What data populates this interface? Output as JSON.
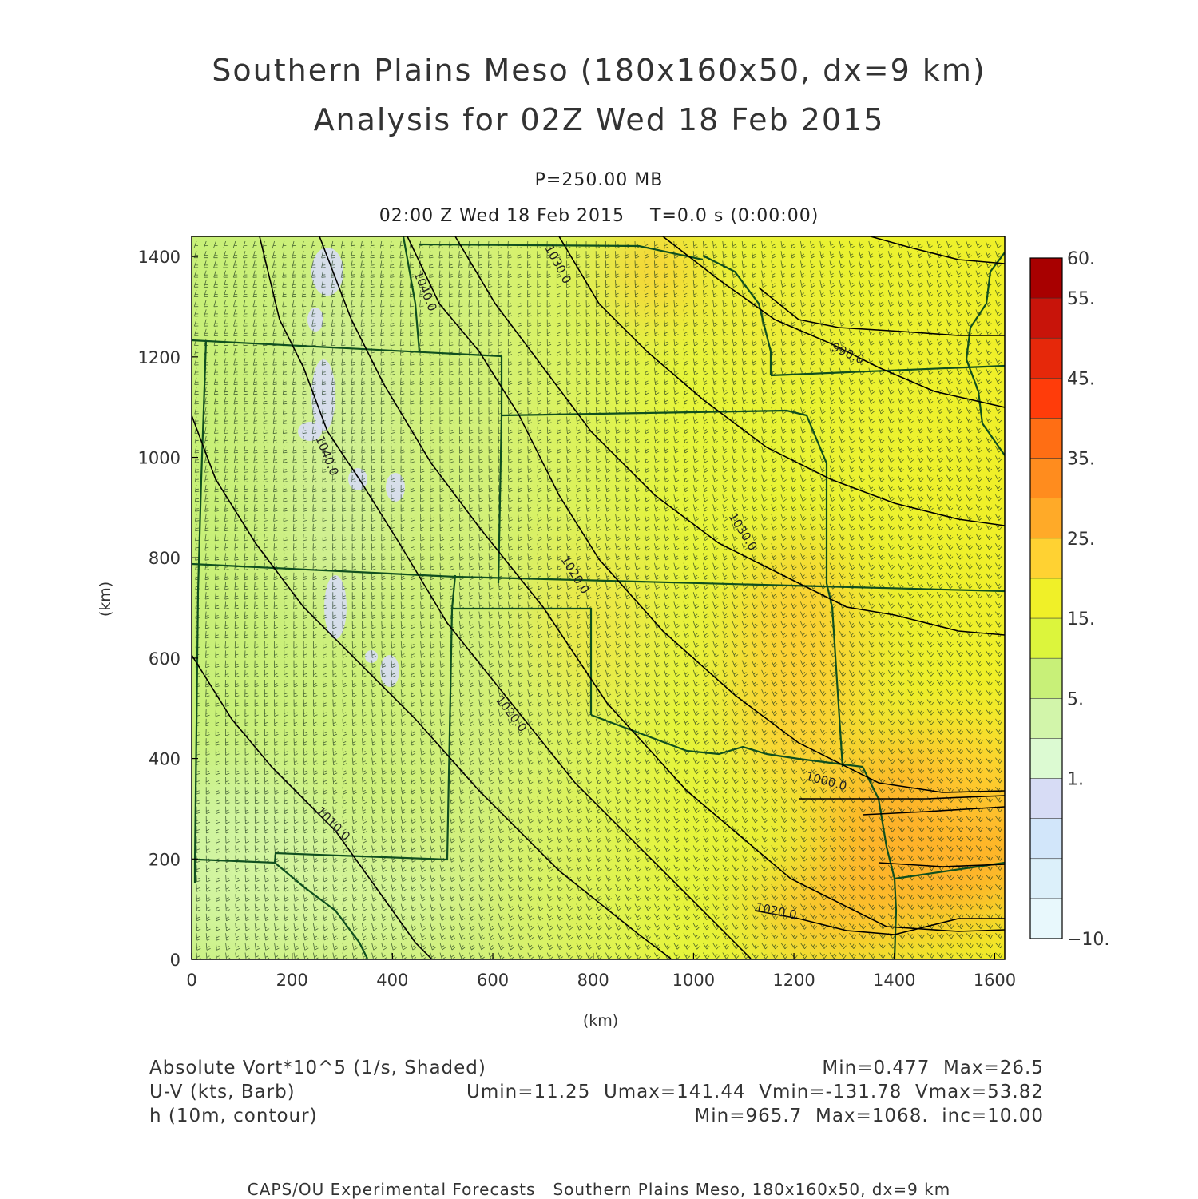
{
  "title": {
    "line1": "Southern Plains Meso (180x160x50, dx=9 km)",
    "line2": "Analysis for 02Z Wed 18 Feb 2015"
  },
  "subtitle": {
    "pressure": "P=250.00 MB",
    "time": "02:00 Z Wed 18 Feb 2015    T=0.0 s (0:00:00)"
  },
  "axes": {
    "xlabel": "(km)",
    "ylabel": "(km)",
    "xticks": [
      0,
      200,
      400,
      600,
      800,
      1000,
      1200,
      1400,
      1600
    ],
    "yticks": [
      0,
      200,
      400,
      600,
      800,
      1000,
      1200,
      1400
    ],
    "xlim": [
      0,
      1620
    ],
    "ylim": [
      0,
      1440
    ]
  },
  "colorbar": {
    "levels": [
      "60.",
      "55.",
      "45.",
      "35.",
      "25.",
      "15.",
      "5.",
      "1.",
      "-10."
    ],
    "colors": [
      "#a80000",
      "#c8140a",
      "#e6280a",
      "#ff3c0a",
      "#ff6e14",
      "#ff8c1e",
      "#ffaa28",
      "#ffd232",
      "#f0f028",
      "#dcf53c",
      "#c8f078",
      "#d2f5aa",
      "#dcfad2",
      "#d7dcf5",
      "#d2e6fa",
      "#dcf0fa",
      "#e8f8fc"
    ]
  },
  "contour_labels": [
    "1040.0",
    "1040.0",
    "1030.0",
    "1030.0",
    "1020.0",
    "1020.0",
    "1010.0",
    "1000.0",
    "990.0",
    "1010.0",
    "1020.0"
  ],
  "legend": {
    "left": [
      "Absolute Vort*10^5 (1/s, Shaded)",
      "U-V (kts, Barb)",
      "h (10m, contour)"
    ],
    "right": [
      "Min=0.477  Max=26.5",
      "Umin=11.25  Umax=141.44  Vmin=-131.78  Vmax=53.82",
      "Min=965.7  Max=1068.  inc=10.00"
    ]
  },
  "footer": "CAPS/OU Experimental Forecasts   Southern Plains Meso, 180x160x50, dx=9 km",
  "colors": {
    "barb": "#1e3a1e",
    "border": "#0f4f1f",
    "contour": "#000000"
  }
}
